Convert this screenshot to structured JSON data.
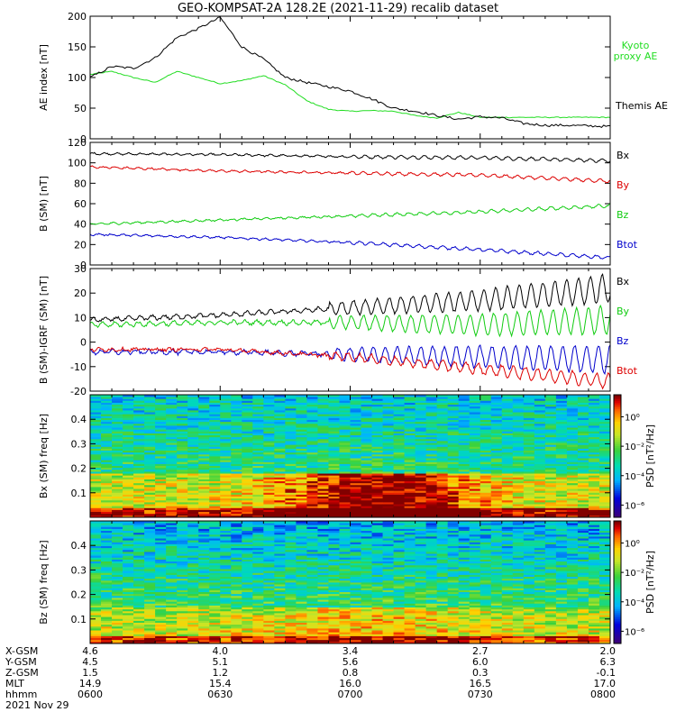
{
  "title": "GEO-KOMPSAT-2A 128.2E (2021-11-29) recalib dataset",
  "date_label": "2021 Nov 29",
  "ephemeris": {
    "rows": [
      {
        "label": "X-GSM",
        "values": [
          "4.6",
          "4.0",
          "3.4",
          "2.7",
          "2.0"
        ]
      },
      {
        "label": "Y-GSM",
        "values": [
          "4.5",
          "5.1",
          "5.6",
          "6.0",
          "6.3"
        ]
      },
      {
        "label": "Z-GSM",
        "values": [
          "1.5",
          "1.2",
          "0.8",
          "0.3",
          "-0.1"
        ]
      },
      {
        "label": "MLT",
        "values": [
          "14.9",
          "15.4",
          "16.0",
          "16.5",
          "17.0"
        ]
      },
      {
        "label": "hhmm",
        "values": [
          "0600",
          "0630",
          "0700",
          "0730",
          "0800"
        ]
      }
    ]
  },
  "chart_data": [
    {
      "type": "line",
      "ylabel": "AE index [nT]",
      "ylim": [
        0,
        200
      ],
      "yticks": [
        0,
        50,
        100,
        150,
        200
      ],
      "x_range_minutes": [
        0,
        120
      ],
      "legend_placement": "right",
      "series": [
        {
          "name": "Kyoto proxy AE",
          "color": "#22dd22",
          "x": [
            0,
            5,
            10,
            15,
            20,
            25,
            30,
            35,
            40,
            45,
            50,
            55,
            60,
            65,
            70,
            75,
            80,
            85,
            90,
            95,
            100,
            105,
            110,
            115,
            120
          ],
          "values": [
            105,
            110,
            100,
            92,
            110,
            100,
            90,
            95,
            103,
            88,
            62,
            48,
            45,
            46,
            45,
            38,
            34,
            43,
            35,
            35,
            35,
            35,
            35,
            35,
            35
          ]
        },
        {
          "name": "Themis AE",
          "color": "#000000",
          "x": [
            0,
            5,
            10,
            15,
            20,
            25,
            30,
            35,
            40,
            45,
            50,
            55,
            60,
            65,
            70,
            75,
            80,
            85,
            90,
            95,
            100,
            105,
            110,
            115,
            120
          ],
          "values": [
            100,
            118,
            115,
            132,
            165,
            180,
            198,
            150,
            130,
            100,
            92,
            85,
            78,
            65,
            50,
            45,
            38,
            32,
            36,
            34,
            25,
            22,
            22,
            21,
            20
          ]
        }
      ]
    },
    {
      "type": "line",
      "ylabel": "B (SM) [nT]",
      "ylim": [
        0,
        120
      ],
      "yticks": [
        0,
        20,
        40,
        60,
        80,
        100,
        120
      ],
      "x_range_minutes": [
        0,
        120
      ],
      "legend_placement": "right",
      "series": [
        {
          "name": "Bx",
          "color": "#000000",
          "x": [
            0,
            30,
            60,
            90,
            120
          ],
          "values": [
            109,
            108,
            106,
            105,
            102
          ]
        },
        {
          "name": "By",
          "color": "#dd0000",
          "x": [
            0,
            30,
            60,
            90,
            120
          ],
          "values": [
            96,
            92,
            90,
            88,
            82
          ]
        },
        {
          "name": "Bz",
          "color": "#11cc11",
          "x": [
            0,
            30,
            60,
            90,
            120
          ],
          "values": [
            40,
            44,
            48,
            52,
            58
          ]
        },
        {
          "name": "Btot",
          "color": "#0000cc",
          "x": [
            0,
            30,
            60,
            90,
            120
          ],
          "values": [
            30,
            27,
            22,
            15,
            7
          ]
        }
      ]
    },
    {
      "type": "line",
      "ylabel": "B (SM)-IGRF (SM) [nT]",
      "ylim": [
        -20,
        30
      ],
      "yticks": [
        -20,
        -10,
        0,
        10,
        20,
        30
      ],
      "x_range_minutes": [
        0,
        120
      ],
      "legend_placement": "right",
      "series": [
        {
          "name": "Bx",
          "color": "#000000",
          "x": [
            0,
            30,
            60,
            90,
            120
          ],
          "values": [
            9,
            11,
            14,
            17,
            22
          ]
        },
        {
          "name": "By",
          "color": "#11cc11",
          "x": [
            0,
            30,
            60,
            90,
            120
          ],
          "values": [
            7,
            8,
            8,
            7,
            9
          ]
        },
        {
          "name": "Bz",
          "color": "#0000cc",
          "x": [
            0,
            30,
            60,
            90,
            120
          ],
          "values": [
            -4,
            -4,
            -5,
            -6,
            -7
          ]
        },
        {
          "name": "Btot",
          "color": "#dd0000",
          "x": [
            0,
            30,
            60,
            90,
            120
          ],
          "values": [
            -3,
            -3,
            -6,
            -11,
            -16
          ]
        }
      ]
    },
    {
      "type": "heatmap",
      "ylabel": "Bx (SM) freq [Hz]",
      "ylim": [
        0,
        0.5
      ],
      "yticks": [
        0.1,
        0.2,
        0.3,
        0.4
      ],
      "colorbar_label": "PSD [nT²/Hz]",
      "colorbar_ticks": [
        "10⁰",
        "10⁻²",
        "10⁻⁴",
        "10⁻⁶"
      ],
      "dominant": "high power below 0.2 Hz, strongest near 0.1-0.15 Hz around 0700-0715"
    },
    {
      "type": "heatmap",
      "ylabel": "Bz (SM) freq [Hz]",
      "ylim": [
        0,
        0.5
      ],
      "yticks": [
        0.1,
        0.2,
        0.3,
        0.4
      ],
      "colorbar_label": "PSD [nT²/Hz]",
      "colorbar_ticks": [
        "10⁰",
        "10⁻²",
        "10⁻⁴",
        "10⁻⁶"
      ],
      "dominant": "yellow/green low-frequency power, cyan/blue above 0.3 Hz"
    }
  ]
}
